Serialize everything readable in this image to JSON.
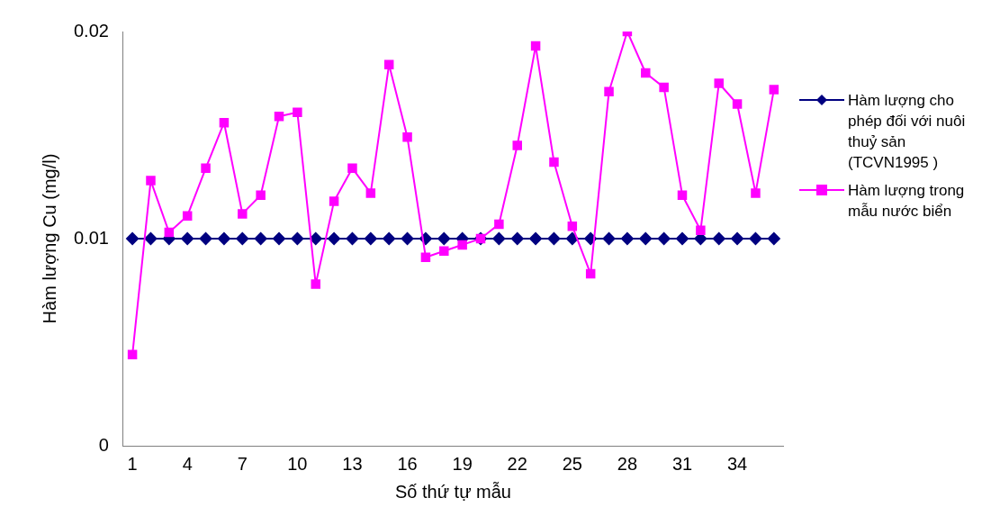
{
  "chart_data": {
    "type": "line",
    "xlabel": "Số thứ tự mẫu",
    "ylabel": "Hàm lượng Cu (mg/l)",
    "categories": [
      "1",
      null,
      null,
      "4",
      null,
      null,
      "7",
      null,
      null,
      "10",
      null,
      null,
      "13",
      null,
      null,
      "16",
      null,
      null,
      "19",
      null,
      null,
      "22",
      null,
      null,
      "25",
      null,
      null,
      "28",
      null,
      null,
      "31",
      null,
      null,
      "34",
      null,
      null
    ],
    "series": [
      {
        "name": "Hàm lượng cho phép đối với nuôi thuỷ sản (TCVN1995 )",
        "color": "#000080",
        "marker": "diamond",
        "values": [
          0.01,
          0.01,
          0.01,
          0.01,
          0.01,
          0.01,
          0.01,
          0.01,
          0.01,
          0.01,
          0.01,
          0.01,
          0.01,
          0.01,
          0.01,
          0.01,
          0.01,
          0.01,
          0.01,
          0.01,
          0.01,
          0.01,
          0.01,
          0.01,
          0.01,
          0.01,
          0.01,
          0.01,
          0.01,
          0.01,
          0.01,
          0.01,
          0.01,
          0.01,
          0.01,
          0.01
        ]
      },
      {
        "name": "Hàm lượng trong mẫu nước biển",
        "color": "#ff00ff",
        "marker": "square",
        "values": [
          0.0044,
          0.0128,
          0.0103,
          0.0111,
          0.0134,
          0.0156,
          0.0112,
          0.0121,
          0.0159,
          0.0161,
          0.0078,
          0.0118,
          0.0134,
          0.0122,
          0.0184,
          0.0149,
          0.0091,
          0.0094,
          0.0097,
          0.01,
          0.0107,
          0.0145,
          0.0193,
          0.0137,
          0.0106,
          0.0083,
          0.0171,
          0.02,
          0.018,
          0.0173,
          0.0121,
          0.0104,
          0.0175,
          0.0165,
          0.0122,
          0.0172
        ]
      }
    ],
    "ylim": [
      0,
      0.02
    ],
    "yticks": [
      0,
      0.01,
      0.02
    ],
    "grid": false,
    "legend": "right"
  }
}
